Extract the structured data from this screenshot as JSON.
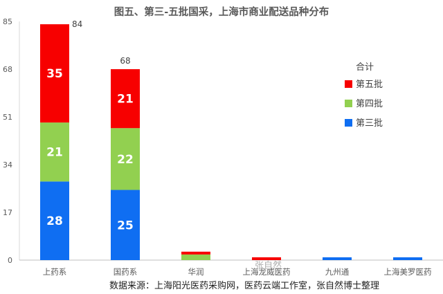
{
  "chart_data": {
    "type": "bar",
    "stacked": true,
    "title": "图五、第三-五批国采，上海市商业配送品种分布",
    "categories": [
      "上药系",
      "国药系",
      "华润",
      "上海龙威医药",
      "九州通",
      "上海美罗医药"
    ],
    "series": [
      {
        "name": "第三批",
        "color": "#0F6EF2",
        "values": [
          28,
          25,
          0,
          0,
          1,
          1
        ]
      },
      {
        "name": "第四批",
        "color": "#92D050",
        "values": [
          21,
          22,
          2,
          0,
          0,
          0
        ]
      },
      {
        "name": "第五批",
        "color": "#F70000",
        "values": [
          35,
          21,
          1,
          1,
          0,
          0
        ]
      }
    ],
    "segment_labels": {
      "第三批": [
        "28",
        "25"
      ],
      "第四批": [
        "21",
        "22"
      ],
      "第五批": [
        "35",
        "21"
      ]
    },
    "totals": [
      "84",
      "68"
    ],
    "ylim": [
      0,
      85
    ],
    "yticks": [
      "0",
      "17",
      "34",
      "51",
      "68",
      "85"
    ],
    "legend_title": "合计",
    "legend_position": "right",
    "grid": false
  },
  "source_note": "数据来源：上海阳光医药采购网，医药云端工作室，张自然博士整理",
  "watermark": "张自然"
}
